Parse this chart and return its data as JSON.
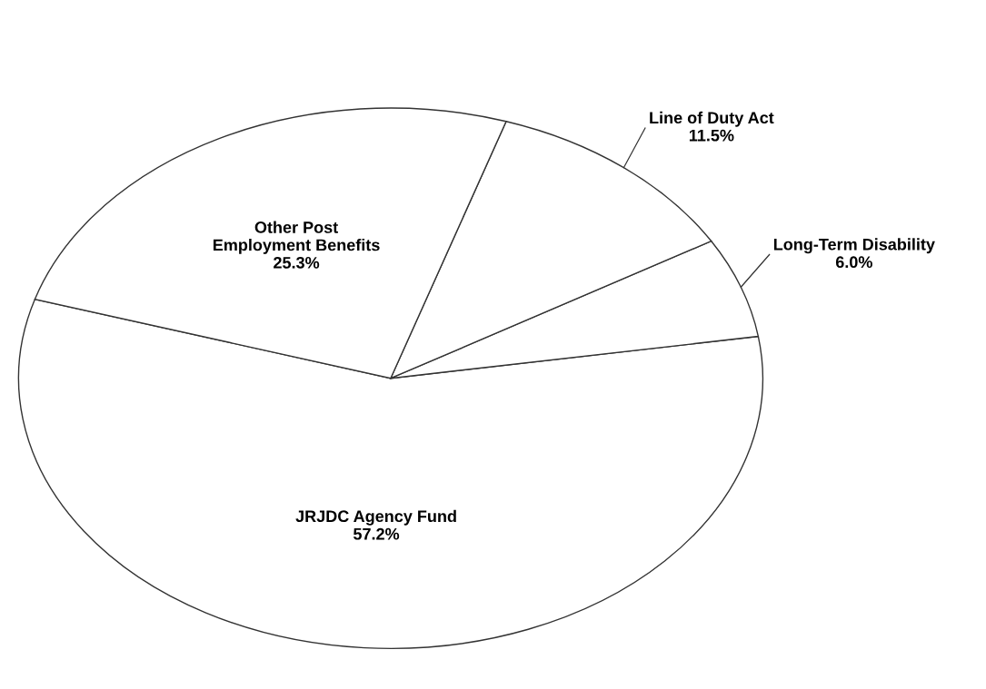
{
  "chart_data": {
    "type": "pie",
    "categories": [
      "JRJDC Agency Fund",
      "Long-Term Disability",
      "Line of Duty Act",
      "Other Post\nEmployment Benefits"
    ],
    "values": [
      57.2,
      6.0,
      11.5,
      25.3
    ],
    "colors": [
      "#ffffff",
      "#ffffff",
      "#ffffff",
      "#ffffff"
    ],
    "value_labels": [
      "57.2%",
      "6.0%",
      "11.5%",
      "25.3%"
    ]
  }
}
